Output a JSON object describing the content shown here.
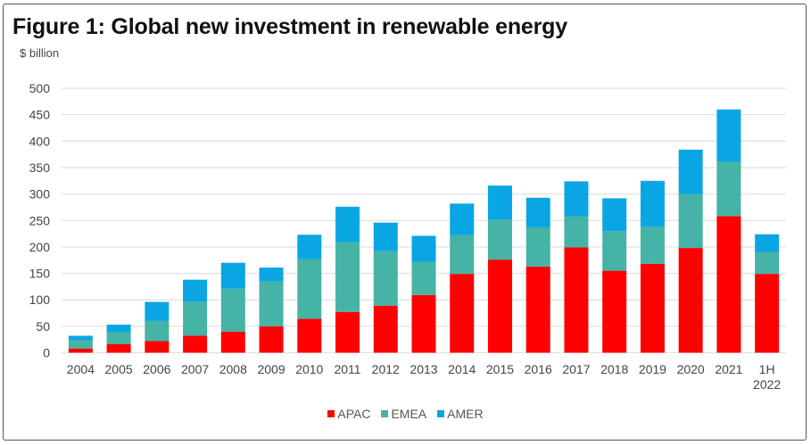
{
  "chart_data": {
    "type": "bar",
    "stacked": true,
    "title": "Figure 1: Global new investment in renewable energy",
    "ylabel": "$ billion",
    "xlabel": "",
    "ylim": [
      0,
      500
    ],
    "yticks": [
      0,
      50,
      100,
      150,
      200,
      250,
      300,
      350,
      400,
      450,
      500
    ],
    "grid": true,
    "legend_position": "bottom",
    "categories": [
      "2004",
      "2005",
      "2006",
      "2007",
      "2008",
      "2009",
      "2010",
      "2011",
      "2012",
      "2013",
      "2014",
      "2015",
      "2016",
      "2017",
      "2018",
      "2019",
      "2020",
      "2021",
      "1H 2022"
    ],
    "category_lines": [
      [
        "2004"
      ],
      [
        "2005"
      ],
      [
        "2006"
      ],
      [
        "2007"
      ],
      [
        "2008"
      ],
      [
        "2009"
      ],
      [
        "2010"
      ],
      [
        "2011"
      ],
      [
        "2012"
      ],
      [
        "2013"
      ],
      [
        "2014"
      ],
      [
        "2015"
      ],
      [
        "2016"
      ],
      [
        "2017"
      ],
      [
        "2018"
      ],
      [
        "2019"
      ],
      [
        "2020"
      ],
      [
        "2021"
      ],
      [
        "1H",
        "2022"
      ]
    ],
    "series": [
      {
        "name": "APAC",
        "color": "#ff0000",
        "values": [
          8,
          16,
          22,
          32,
          40,
          50,
          64,
          77,
          89,
          109,
          149,
          176,
          163,
          199,
          155,
          168,
          198,
          258,
          149
        ]
      },
      {
        "name": "EMEA",
        "color": "#45b3a5",
        "values": [
          15,
          23,
          38,
          65,
          81,
          85,
          113,
          132,
          103,
          63,
          73,
          76,
          74,
          59,
          75,
          70,
          102,
          103,
          41
        ]
      },
      {
        "name": "AMER",
        "color": "#0aa6e3",
        "values": [
          9,
          14,
          36,
          41,
          49,
          26,
          46,
          67,
          54,
          49,
          60,
          64,
          56,
          66,
          62,
          87,
          84,
          99,
          34
        ]
      }
    ]
  }
}
